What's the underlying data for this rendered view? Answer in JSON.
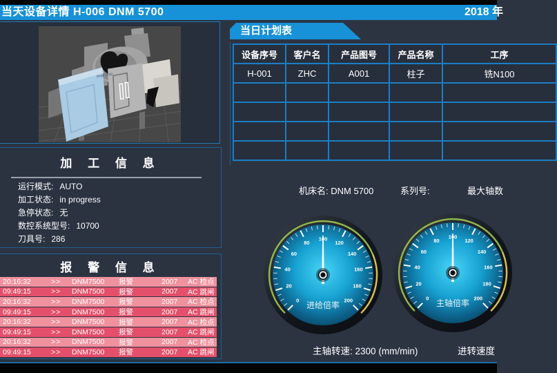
{
  "header": {
    "title": "当天设备详情  H-006   DNM 5700",
    "date": "2018 年"
  },
  "machine_panel": {
    "machine_label": "DNM 5700"
  },
  "process_info": {
    "title": "加 工 信 息",
    "fields": [
      {
        "label": "运行模式:",
        "value": "AUTO"
      },
      {
        "label": "加工状态:",
        "value": "in progress"
      },
      {
        "label": "急停状态:",
        "value": "无"
      },
      {
        "label": "数控系统型号:",
        "value": "10700"
      },
      {
        "label": "刀具号:",
        "value": "286"
      }
    ]
  },
  "alarms": {
    "title": "报 警 信 息",
    "rows": [
      {
        "time": "20:16:32",
        "sep": ">>",
        "machine": "DNM7500",
        "type": "报警",
        "code": "2007",
        "message": "AC 检点",
        "severity": "light"
      },
      {
        "time": "09:49:15",
        "sep": ">>",
        "machine": "DNM7500",
        "type": "报警",
        "code": "2007",
        "message": "AC 跳闸",
        "severity": "dark"
      },
      {
        "time": "20:16:32",
        "sep": ">>",
        "machine": "DNM7500",
        "type": "报警",
        "code": "2007",
        "message": "AC 检点",
        "severity": "light"
      },
      {
        "time": "09:49:15",
        "sep": ">>",
        "machine": "DNM7500",
        "type": "报警",
        "code": "2007",
        "message": "AC 跳闸",
        "severity": "dark"
      },
      {
        "time": "20:16:32",
        "sep": ">>",
        "machine": "DNM7500",
        "type": "报警",
        "code": "2007",
        "message": "AC 检点",
        "severity": "light"
      },
      {
        "time": "09:49:15",
        "sep": ">>",
        "machine": "DNM7500",
        "type": "报警",
        "code": "2007",
        "message": "AC 跳闸",
        "severity": "dark"
      },
      {
        "time": "20:16:32",
        "sep": ">>",
        "machine": "DNM7500",
        "type": "报警",
        "code": "2007",
        "message": "AC 检点",
        "severity": "light"
      },
      {
        "time": "09:49:15",
        "sep": ">>",
        "machine": "DNM7500",
        "type": "报警",
        "code": "2007",
        "message": "AC 跳闸",
        "severity": "dark"
      }
    ]
  },
  "plan_table": {
    "tab_title": "当日计划表",
    "columns": [
      "设备序号",
      "客户名",
      "产品图号",
      "产品名称",
      "工序"
    ],
    "rows": [
      [
        "H-001",
        "ZHC",
        "A001",
        "柱子",
        "铣N100"
      ],
      [
        "",
        "",
        "",
        "",
        ""
      ],
      [
        "",
        "",
        "",
        "",
        ""
      ],
      [
        "",
        "",
        "",
        "",
        ""
      ],
      [
        "",
        "",
        "",
        "",
        ""
      ]
    ]
  },
  "machine_info": {
    "name_label": "机床名:",
    "name_value": "DNM 5700",
    "series_label": "系列号:",
    "series_value": "",
    "max_axes_label": "最大轴数"
  },
  "chart_data": [
    {
      "type": "gauge",
      "title": "进给倍率",
      "min": 0,
      "max": 200,
      "value": 100,
      "major_step": 20,
      "minor_step": 5,
      "green_until": 150
    },
    {
      "type": "gauge",
      "title": "主轴倍率",
      "min": 0,
      "max": 200,
      "value": 100,
      "major_step": 20,
      "minor_step": 5,
      "green_until": 150
    }
  ],
  "footer": {
    "spindle_label": "主轴转速:",
    "spindle_value": "2300",
    "spindle_unit": "(mm/min)",
    "feed_label": "进转速度"
  },
  "colors": {
    "header_blue": "#1791d8",
    "alarm_light": "#f0919e",
    "alarm_dark": "#e4506b",
    "table_border": "#1b7ec4",
    "panel_border": "#1e5f93",
    "gauge_green": "#93b54c",
    "gauge_yellow": "#d6c053",
    "gauge_face_center": "#49d4f6",
    "gauge_face_edge": "#093a55"
  }
}
